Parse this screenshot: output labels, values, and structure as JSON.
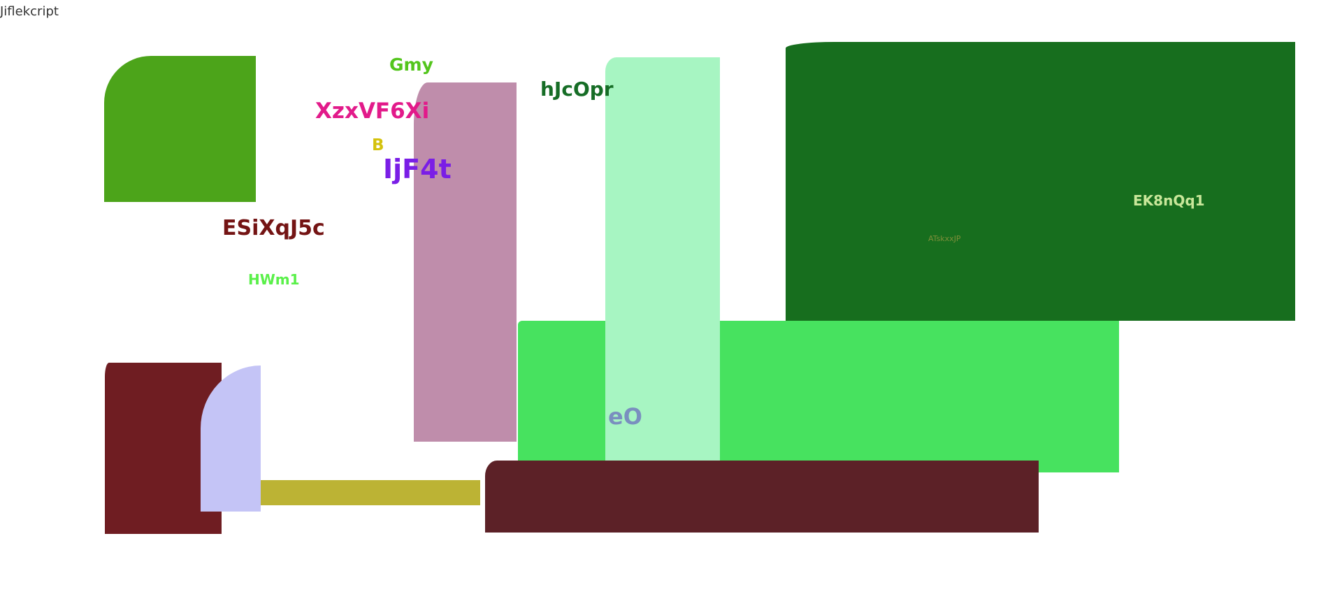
{
  "corner_text": "Jiflekcript",
  "colors": {
    "green_tile": "#4ca41a",
    "mauve_tile": "#bf8dab",
    "mint_tile": "#a7f5c2",
    "dark_green_tile": "#176e1e",
    "bright_green_tile": "#47e25f",
    "maroon_tile": "#6f1d22",
    "lavender_tile": "#c4c4f6",
    "olive_bar": "#bcb334",
    "dark_maroon_tile": "#5c2127"
  },
  "labels": {
    "gmy": "Gmy",
    "xzx": "XzxVF6Xi",
    "b": "B",
    "ijf": "IjF4t",
    "hjc": "hJcOpr",
    "esi": "ESiXqJ5c",
    "hwm": "HWm1",
    "ek8": "EK8nQq1",
    "atsk": "ATskxxJP",
    "eo": "eO"
  }
}
